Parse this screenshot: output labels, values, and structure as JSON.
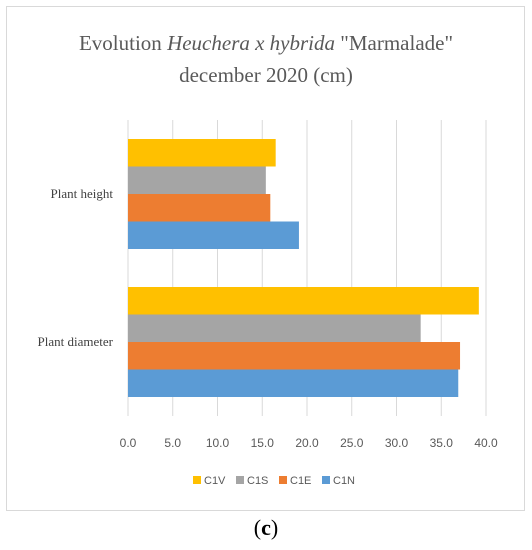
{
  "figure": {
    "caption_open": "(",
    "caption_letter": "c",
    "caption_close": ")"
  },
  "chart_data": {
    "type": "bar",
    "orientation": "horizontal",
    "title_line1_pre": "Evolution ",
    "title_line1_italic": "Heuchera x hybrida",
    "title_line1_post": " \"Marmalade\"",
    "title_line2": "december  2020 (cm)",
    "categories": [
      "Plant height",
      "Plant diameter"
    ],
    "series": [
      {
        "name": "C1V",
        "color": "#ffc000",
        "values": [
          16.5,
          39.2
        ]
      },
      {
        "name": "C1S",
        "color": "#a5a5a5",
        "values": [
          15.4,
          32.7
        ]
      },
      {
        "name": "C1E",
        "color": "#ed7d31",
        "values": [
          15.9,
          37.1
        ]
      },
      {
        "name": "C1N",
        "color": "#5b9bd5",
        "values": [
          19.1,
          36.9
        ]
      }
    ],
    "xlim": [
      0,
      40
    ],
    "xticks": [
      "0.0",
      "5.0",
      "10.0",
      "15.0",
      "20.0",
      "25.0",
      "30.0",
      "35.0",
      "40.0"
    ],
    "grid": "vertical",
    "legend_position": "bottom"
  }
}
